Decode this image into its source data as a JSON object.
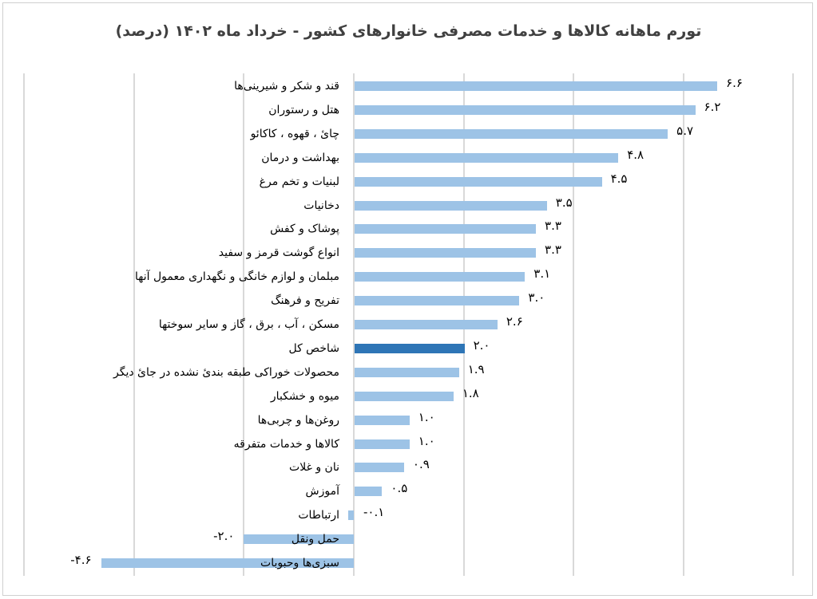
{
  "chart_data": {
    "type": "bar",
    "orientation": "horizontal",
    "title": "تورم ماهانه کالاها و خدمات مصرفی خانوارهای کشور - خرداد ماه ۱۴۰۲ (درصد)",
    "xlabel": "",
    "ylabel": "",
    "xlim": [
      -6,
      8
    ],
    "grid": true,
    "gridline_step": 2,
    "legend": null,
    "categories": [
      "قند و شکر و شیرینی‌ها",
      "هتل و رستوران",
      "چایٔ ، قهوه ، کاکائو",
      "بهداشت و درمان",
      "لبنیات و تخم مرغ",
      "دخانیات",
      "پوشاک و کفش",
      "انواع گوشت قرمز و سفید",
      "مبلمان و لوازم خانگی و نگهداری معمول آنها",
      "تفریح و فرهنگ",
      "مسکن ، آب ، برق ، گاز و سایر سوختها",
      "شاخص کل",
      "محصولات خوراکی طبقه بندیٔ نشده در جایٔ دیگر",
      "میوه و خشکبار",
      "روغن‌ها و چربی‌ها",
      "کالاها و خدمات متفرقه",
      "نان و غلات",
      "آموزش",
      "ارتباطات",
      "حمل ونقل",
      "سبزی‌ها وحبوبات"
    ],
    "values": [
      6.6,
      6.2,
      5.7,
      4.8,
      4.5,
      3.5,
      3.3,
      3.3,
      3.1,
      3.0,
      2.6,
      2.0,
      1.9,
      1.8,
      1.0,
      1.0,
      0.9,
      0.5,
      -0.1,
      -2.0,
      -4.6
    ],
    "value_labels": [
      "۶.۶",
      "۶.۲",
      "۵.۷",
      "۴.۸",
      "۴.۵",
      "۳.۵",
      "۳.۳",
      "۳.۳",
      "۳.۱",
      "۳.۰",
      "۲.۶",
      "۲.۰",
      "۱.۹",
      "۱.۸",
      "۱.۰",
      "۱.۰",
      "۰.۹",
      "۰.۵",
      "-۰.۱",
      "-۲.۰",
      "-۴.۶"
    ],
    "highlight_index": 11,
    "colors": {
      "bar": "#9dc3e6",
      "highlight": "#2e75b6",
      "grid": "#d9d9d9",
      "title": "#404040"
    }
  }
}
